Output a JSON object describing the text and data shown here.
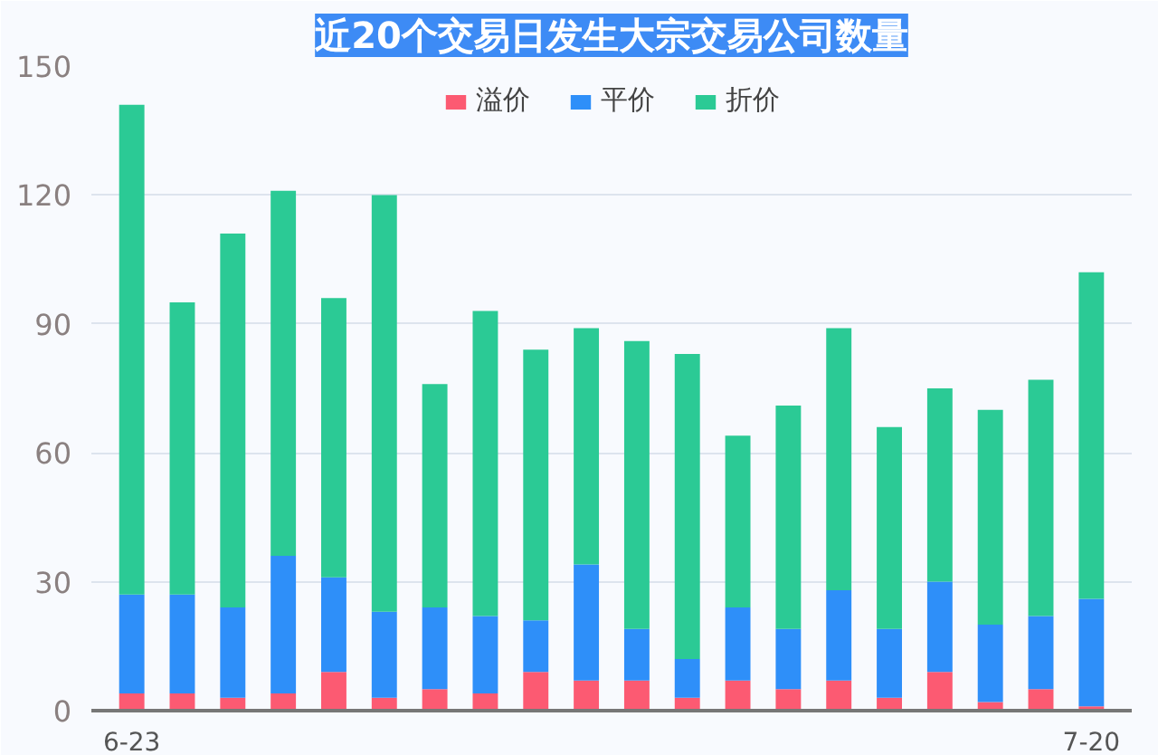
{
  "chart_data": {
    "type": "bar",
    "title": "近20个交易日发生大宗交易公司数量",
    "stacked": true,
    "categories": [
      "6-23",
      null,
      null,
      null,
      null,
      null,
      null,
      null,
      null,
      null,
      null,
      null,
      null,
      null,
      null,
      null,
      null,
      null,
      null,
      "7-20"
    ],
    "series": [
      {
        "name": "溢价",
        "color": "#fc5a72",
        "values": [
          4,
          4,
          3,
          4,
          9,
          3,
          5,
          4,
          9,
          7,
          7,
          3,
          7,
          5,
          7,
          3,
          9,
          2,
          5,
          1
        ]
      },
      {
        "name": "平价",
        "color": "#2e8ff9",
        "values": [
          23,
          23,
          21,
          32,
          22,
          20,
          19,
          18,
          12,
          27,
          12,
          9,
          17,
          14,
          21,
          16,
          21,
          18,
          17,
          25
        ]
      },
      {
        "name": "折价",
        "color": "#2bca95",
        "values": [
          114,
          68,
          87,
          85,
          65,
          97,
          52,
          71,
          63,
          55,
          67,
          71,
          40,
          52,
          61,
          47,
          45,
          50,
          55,
          76
        ]
      }
    ],
    "ylim": [
      0,
      150
    ],
    "yticks": [
      0,
      30,
      60,
      90,
      120,
      150
    ],
    "grid": "y",
    "legend": "top"
  }
}
